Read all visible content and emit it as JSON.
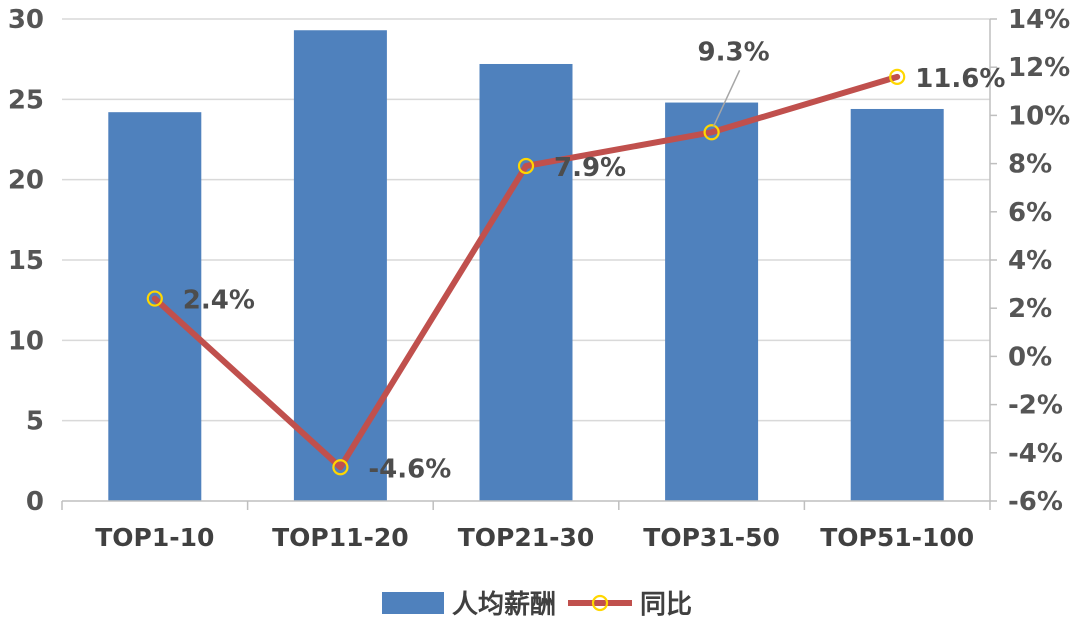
{
  "chart_data": {
    "type": "bar",
    "categories": [
      "TOP1-10",
      "TOP11-20",
      "TOP21-30",
      "TOP31-50",
      "TOP51-100"
    ],
    "series": [
      {
        "name": "人均薪酬",
        "type": "bar",
        "axis": "left",
        "color": "#4F81BD",
        "values": [
          24.2,
          29.3,
          27.2,
          24.8,
          24.4
        ]
      },
      {
        "name": "同比",
        "type": "line",
        "axis": "right",
        "color": "#C0504D",
        "marker_color": "#FFD700",
        "values": [
          2.4,
          -4.6,
          7.9,
          9.3,
          11.6
        ],
        "data_labels": [
          "2.4%",
          "-4.6%",
          "7.9%",
          "9.3%",
          "11.6%"
        ]
      }
    ],
    "y_left": {
      "lim": [
        0,
        30
      ],
      "ticks": [
        0,
        5,
        10,
        15,
        20,
        25,
        30
      ],
      "tick_labels": [
        "0",
        "5",
        "10",
        "15",
        "20",
        "25",
        "30"
      ]
    },
    "y_right": {
      "lim": [
        -6,
        14
      ],
      "ticks": [
        -6,
        -4,
        -2,
        0,
        2,
        4,
        6,
        8,
        10,
        12,
        14
      ],
      "tick_labels": [
        "-6%",
        "-4%",
        "-2%",
        "0%",
        "2%",
        "4%",
        "6%",
        "8%",
        "10%",
        "12%",
        "14%"
      ]
    },
    "grid": true,
    "legend": {
      "position": "bottom",
      "entries": [
        "人均薪酬",
        "同比"
      ]
    },
    "colors": {
      "grid": "#D9D9D9",
      "axis": "#BFBFBF",
      "leader": "#A6A6A6"
    }
  }
}
